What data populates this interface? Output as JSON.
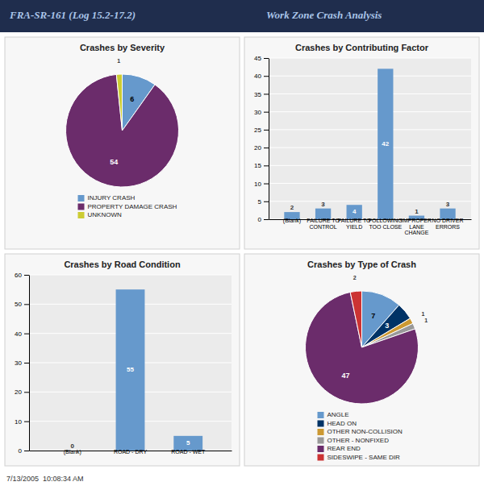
{
  "title": "FRA-SR-161 (Log 15.2-17.2)",
  "subtitle": "Work Zone Crash Analysis",
  "annotations": [
    "7/13/2005  10:08:34 AM"
  ],
  "chart_data": [
    {
      "type": "pie",
      "title": "Crashes by Severity",
      "categories": [
        "INJURY CRASH",
        "PROPERTY DAMAGE CRASH",
        "UNKNOWN"
      ],
      "values": [
        6,
        54,
        1
      ],
      "colors": [
        "#6699CC",
        "#6B2C6B",
        "#CCCC33"
      ],
      "data_labels": true,
      "legend": "bottom"
    },
    {
      "type": "bar",
      "title": "Crashes by Contributing Factor",
      "categories": [
        "(Blank)",
        "FAILURE TO\nCONTROL",
        "FAILURE TO\nYIELD",
        "FOLLOWING\nTOO CLOSE",
        "IMPROPER\nLANE\nCHANGE",
        "NO DRIVER\nERRORS"
      ],
      "values": [
        2,
        3,
        4,
        42,
        1,
        3
      ],
      "color": "#6699CC",
      "ylim": [
        0,
        45
      ],
      "yticks": [
        0,
        5,
        10,
        15,
        20,
        25,
        30,
        35,
        40,
        45
      ],
      "grid": true,
      "data_labels": true
    },
    {
      "type": "bar",
      "title": "Crashes by Road Condition",
      "categories": [
        "(Blank)",
        "ROAD - DRY",
        "ROAD - WET"
      ],
      "values": [
        0,
        55,
        5
      ],
      "color": "#6699CC",
      "ylim": [
        0,
        60
      ],
      "yticks": [
        0,
        10,
        20,
        30,
        40,
        50,
        60
      ],
      "grid": true,
      "data_labels": true
    },
    {
      "type": "pie",
      "title": "Crashes by Type of Crash",
      "categories": [
        "ANGLE",
        "HEAD ON",
        "OTHER NON-COLLISION",
        "OTHER - NONFIXED",
        "REAR END",
        "SIDESWIPE - SAME DIR"
      ],
      "values": [
        7,
        3,
        1,
        1,
        47,
        2
      ],
      "colors": [
        "#6699CC",
        "#003366",
        "#CC9933",
        "#999999",
        "#6B2C6B",
        "#CC3333"
      ],
      "data_labels": true,
      "legend": "bottom"
    }
  ]
}
